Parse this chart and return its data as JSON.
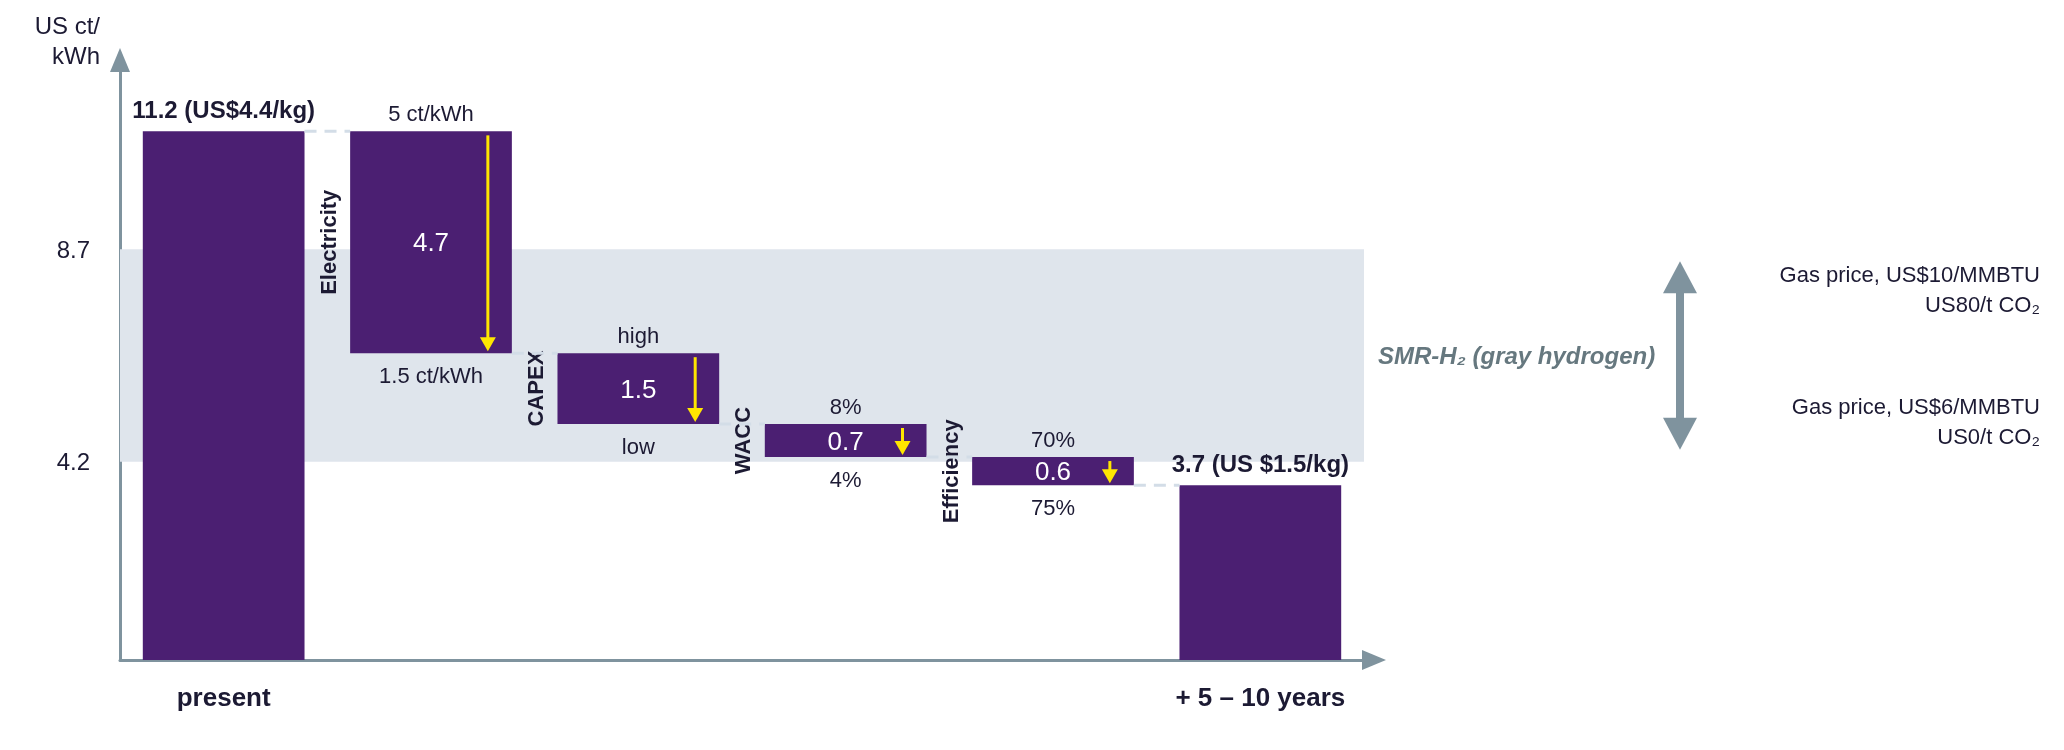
{
  "chart_data": {
    "type": "bar",
    "categories": [
      "present",
      null,
      null,
      null,
      null,
      "+ 5 – 10 years"
    ],
    "values": [
      11.2,
      4.7,
      1.5,
      0.7,
      0.6,
      3.7
    ],
    "base": [
      0,
      6.5,
      5.0,
      4.3,
      3.7,
      0
    ],
    "value_labels": [
      "11.2 (US$4.4/kg)",
      "4.7",
      "1.5",
      "0.7",
      "0.6",
      "3.7 (US $1.5/kg)"
    ],
    "color": "#4b1f72",
    "ylabel": "US ct/kWh",
    "ylim": [
      0,
      12.5
    ],
    "yticks": [
      4.2,
      8.7
    ],
    "grid": false,
    "bands": [
      {
        "axis": "y",
        "from": 4.2,
        "to": 8.7,
        "label": "SMR-H₂ (gray hydrogen)",
        "color": "#dfe5ec"
      }
    ],
    "annotations": [
      {
        "text": "5 ct/kWh",
        "y": 11.2
      },
      {
        "text": "1.5 ct/kWh",
        "y": 6.5
      },
      {
        "text": "high",
        "y": 6.5
      },
      {
        "text": "low",
        "y": 5.0
      },
      {
        "text": "8%",
        "y": 5.0
      },
      {
        "text": "4%",
        "y": 4.3
      },
      {
        "text": "70%",
        "y": 4.3
      },
      {
        "text": "75%",
        "y": 3.7
      },
      "Electricity",
      "CAPEX",
      "WACC",
      "Efficiency",
      "Gas price, US$10/MMBTU\nUS80/t CO₂",
      "Gas price, US$6/MMBTU\nUS0/t CO₂"
    ]
  }
}
